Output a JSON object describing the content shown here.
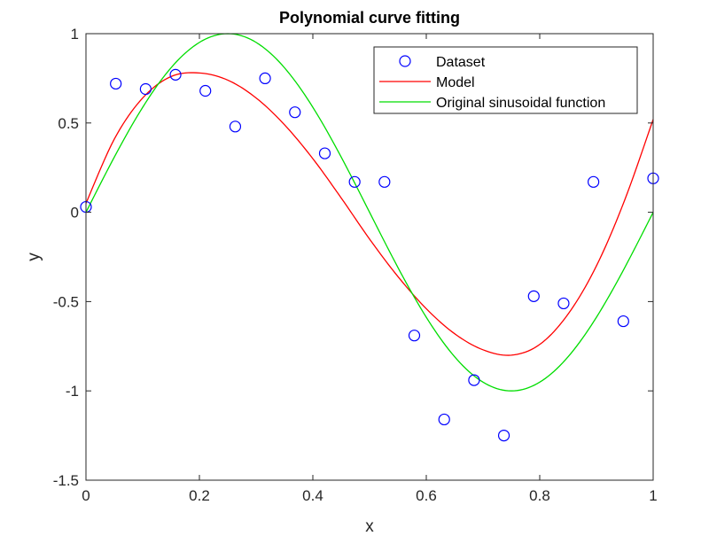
{
  "chart_data": {
    "type": "scatter",
    "title": "Polynomial curve fitting",
    "xlabel": "x",
    "ylabel": "y",
    "xlim": [
      0,
      1
    ],
    "ylim": [
      -1.5,
      1
    ],
    "xticks": [
      0,
      0.2,
      0.4,
      0.6,
      0.8,
      1
    ],
    "xtick_labels": [
      "0",
      "0.2",
      "0.4",
      "0.6",
      "0.8",
      "1"
    ],
    "yticks": [
      -1.5,
      -1,
      -0.5,
      0,
      0.5,
      1
    ],
    "ytick_labels": [
      "-1.5",
      "-1",
      "-0.5",
      "0",
      "0.5",
      "1"
    ],
    "grid": false,
    "legend_position": "top-right",
    "series": [
      {
        "name": "Dataset",
        "kind": "markers",
        "marker": "circle",
        "color": "#0000ff",
        "x": [
          0,
          0.0526,
          0.1053,
          0.1579,
          0.2105,
          0.2632,
          0.3158,
          0.3684,
          0.4211,
          0.4737,
          0.5263,
          0.5789,
          0.6316,
          0.6842,
          0.7368,
          0.7895,
          0.8421,
          0.8947,
          0.9474,
          1
        ],
        "y": [
          0.03,
          0.72,
          0.69,
          0.77,
          0.68,
          0.48,
          0.75,
          0.56,
          0.33,
          0.17,
          0.17,
          -0.69,
          -1.16,
          -0.94,
          -1.25,
          -0.47,
          -0.51,
          0.17,
          -0.61,
          0.19
        ]
      },
      {
        "name": "Model",
        "kind": "line",
        "color": "#ff0000",
        "x": [
          0,
          0.05,
          0.1,
          0.15,
          0.2,
          0.25,
          0.3,
          0.35,
          0.4,
          0.45,
          0.5,
          0.55,
          0.6,
          0.65,
          0.7,
          0.75,
          0.8,
          0.85,
          0.9,
          0.95,
          1
        ],
        "y": [
          0.05,
          0.41,
          0.64,
          0.76,
          0.78,
          0.74,
          0.64,
          0.49,
          0.3,
          0.08,
          -0.15,
          -0.36,
          -0.54,
          -0.68,
          -0.77,
          -0.8,
          -0.74,
          -0.57,
          -0.3,
          0.07,
          0.52
        ]
      },
      {
        "name": "Original sinusoidal function",
        "kind": "line",
        "color": "#00dd00",
        "function": "sin(2*pi*x)"
      }
    ]
  }
}
